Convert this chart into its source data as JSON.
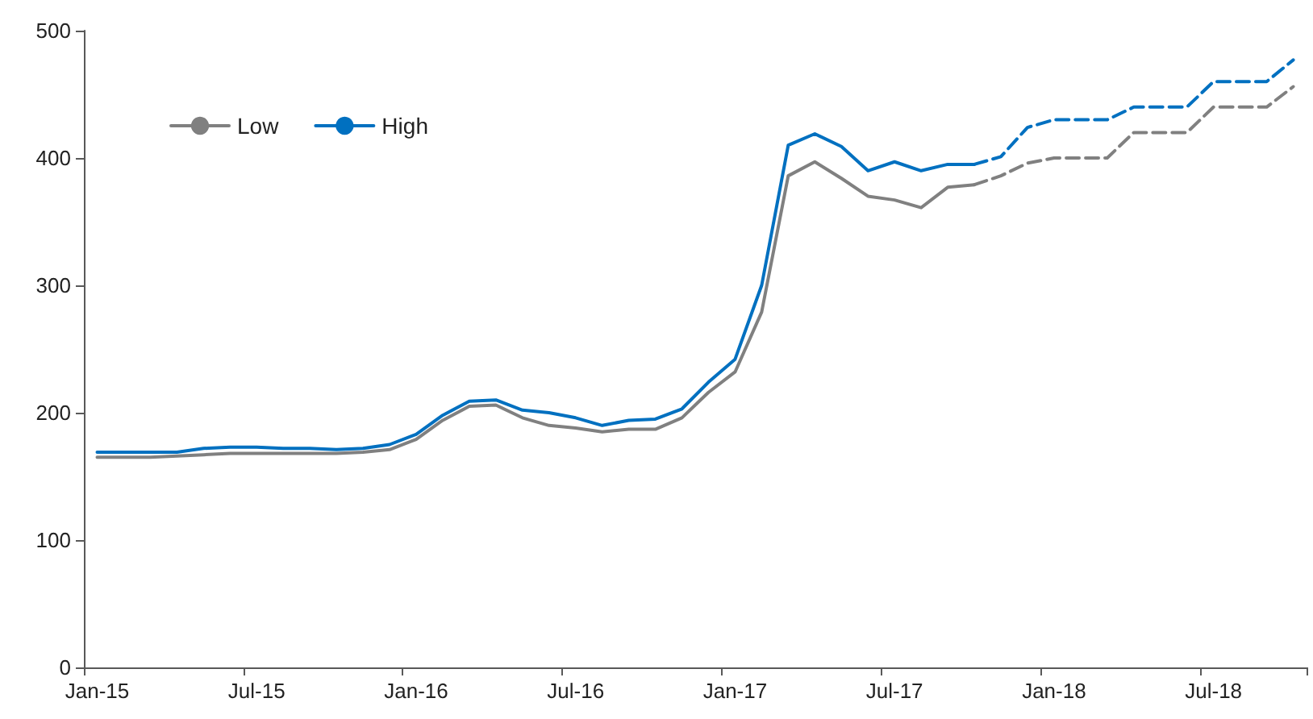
{
  "chart_data": {
    "type": "line",
    "categories": [
      "Jan-15",
      null,
      null,
      null,
      null,
      null,
      "Jul-15",
      null,
      null,
      null,
      null,
      null,
      "Jan-16",
      null,
      null,
      null,
      null,
      null,
      "Jul-16",
      null,
      null,
      null,
      null,
      null,
      "Jan-17",
      null,
      null,
      null,
      null,
      null,
      "Jul-17",
      null,
      null,
      null,
      null,
      null,
      "Jan-18",
      null,
      null,
      null,
      null,
      null,
      "Jul-18",
      null,
      null,
      null
    ],
    "series": [
      {
        "name": "Low",
        "color": "#808080",
        "line_style": "solid",
        "values": [
          165,
          165,
          165,
          166,
          167,
          168,
          168,
          168,
          168,
          168,
          169,
          171,
          179,
          194,
          205,
          206,
          196,
          190,
          188,
          185,
          187,
          187,
          196,
          216,
          232,
          279,
          386,
          397,
          384,
          370,
          367,
          361,
          377,
          379,
          null,
          null,
          null,
          null,
          null,
          null,
          null,
          null,
          null,
          null,
          null,
          null
        ]
      },
      {
        "name": "High",
        "color": "#0070c0",
        "line_style": "solid",
        "values": [
          169,
          169,
          169,
          169,
          172,
          173,
          173,
          172,
          172,
          171,
          172,
          175,
          183,
          198,
          209,
          210,
          202,
          200,
          196,
          190,
          194,
          195,
          203,
          224,
          242,
          300,
          410,
          419,
          409,
          390,
          397,
          390,
          395,
          395,
          null,
          null,
          null,
          null,
          null,
          null,
          null,
          null,
          null,
          null,
          null,
          null
        ]
      },
      {
        "color": "#808080",
        "line_style": "dashed",
        "values": [
          null,
          null,
          null,
          null,
          null,
          null,
          null,
          null,
          null,
          null,
          null,
          null,
          null,
          null,
          null,
          null,
          null,
          null,
          null,
          null,
          null,
          null,
          null,
          null,
          null,
          null,
          null,
          null,
          null,
          null,
          null,
          null,
          null,
          379,
          386,
          396,
          400,
          400,
          400,
          420,
          420,
          420,
          440,
          440,
          440,
          456
        ]
      },
      {
        "color": "#0070c0",
        "line_style": "dashed",
        "values": [
          null,
          null,
          null,
          null,
          null,
          null,
          null,
          null,
          null,
          null,
          null,
          null,
          null,
          null,
          null,
          null,
          null,
          null,
          null,
          null,
          null,
          null,
          null,
          null,
          null,
          null,
          null,
          null,
          null,
          null,
          null,
          null,
          null,
          395,
          401,
          424,
          430,
          430,
          430,
          440,
          440,
          440,
          460,
          460,
          460,
          477
        ]
      }
    ],
    "ylim": [
      0,
      500
    ],
    "yticks": [
      0,
      100,
      200,
      300,
      400,
      500
    ],
    "legend": "top left",
    "marker": "none"
  }
}
